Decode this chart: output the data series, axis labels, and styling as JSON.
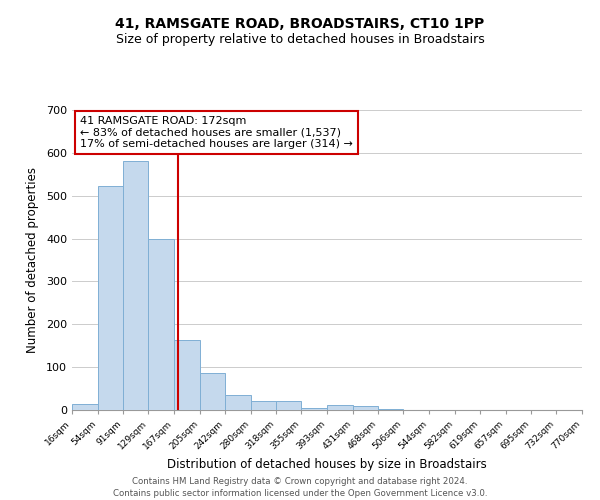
{
  "title": "41, RAMSGATE ROAD, BROADSTAIRS, CT10 1PP",
  "subtitle": "Size of property relative to detached houses in Broadstairs",
  "xlabel": "Distribution of detached houses by size in Broadstairs",
  "ylabel": "Number of detached properties",
  "bar_edges": [
    16,
    54,
    91,
    129,
    167,
    205,
    242,
    280,
    318,
    355,
    393,
    431,
    468,
    506,
    544,
    582,
    619,
    657,
    695,
    732,
    770
  ],
  "bar_heights": [
    13,
    522,
    580,
    400,
    163,
    87,
    35,
    22,
    22,
    5,
    12,
    10,
    2,
    0,
    0,
    0,
    0,
    0,
    0,
    0
  ],
  "tick_labels": [
    "16sqm",
    "54sqm",
    "91sqm",
    "129sqm",
    "167sqm",
    "205sqm",
    "242sqm",
    "280sqm",
    "318sqm",
    "355sqm",
    "393sqm",
    "431sqm",
    "468sqm",
    "506sqm",
    "544sqm",
    "582sqm",
    "619sqm",
    "657sqm",
    "695sqm",
    "732sqm",
    "770sqm"
  ],
  "bar_color": "#c5d9ed",
  "bar_edgecolor": "#7fafd4",
  "vline_x": 172,
  "vline_color": "#cc0000",
  "annotation_line1": "41 RAMSGATE ROAD: 172sqm",
  "annotation_line2": "← 83% of detached houses are smaller (1,537)",
  "annotation_line3": "17% of semi-detached houses are larger (314) →",
  "annotation_box_edgecolor": "#cc0000",
  "annotation_box_facecolor": "white",
  "ylim": [
    0,
    700
  ],
  "yticks": [
    0,
    100,
    200,
    300,
    400,
    500,
    600,
    700
  ],
  "footer_line1": "Contains HM Land Registry data © Crown copyright and database right 2024.",
  "footer_line2": "Contains public sector information licensed under the Open Government Licence v3.0.",
  "background_color": "white",
  "grid_color": "#cccccc",
  "title_fontsize": 10,
  "subtitle_fontsize": 9
}
